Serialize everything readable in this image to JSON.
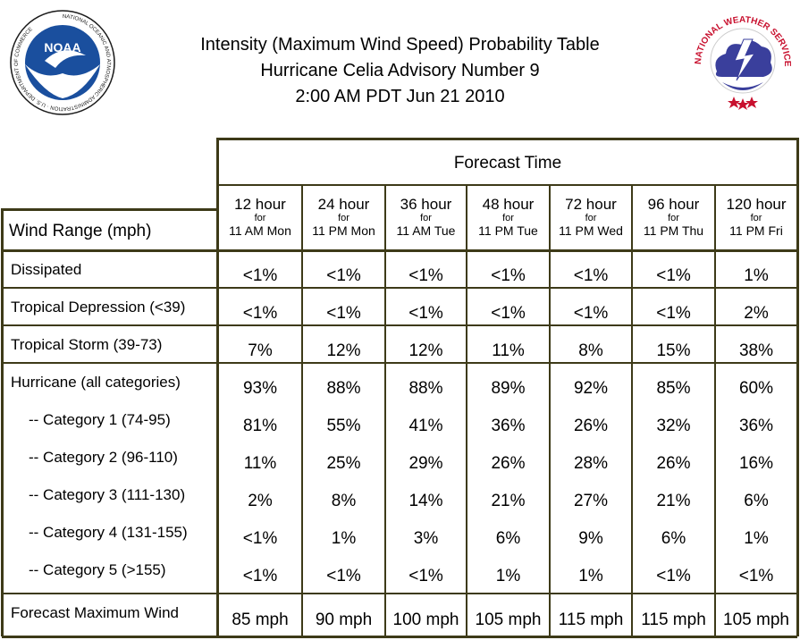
{
  "title": {
    "line1": "Intensity (Maximum Wind Speed) Probability Table",
    "line2": "Hurricane Celia Advisory Number 9",
    "line3": "2:00 AM PDT Jun 21 2010"
  },
  "logos": {
    "noaa": {
      "icon": "noaa-logo-icon",
      "text": "NOAA",
      "ring_text": "NATIONAL OCEANIC AND ATMOSPHERIC ADMINISTRATION · U.S. DEPARTMENT OF COMMERCE"
    },
    "nws": {
      "icon": "nws-logo-icon",
      "ring_text": "NATIONAL WEATHER SERVICE"
    }
  },
  "colors": {
    "grid": "#3d3a18",
    "noaa_blue": "#1a4f9e",
    "nws_red": "#c8102e"
  },
  "table": {
    "forecast_time_label": "Forecast Time",
    "wind_range_label": "Wind Range (mph)",
    "columns": [
      {
        "hours": "12 hour",
        "for": "for",
        "time": "11 AM Mon"
      },
      {
        "hours": "24 hour",
        "for": "for",
        "time": "11 PM Mon"
      },
      {
        "hours": "36 hour",
        "for": "for",
        "time": "11 AM Tue"
      },
      {
        "hours": "48 hour",
        "for": "for",
        "time": "11 PM Tue"
      },
      {
        "hours": "72 hour",
        "for": "for",
        "time": "11 PM Wed"
      },
      {
        "hours": "96 hour",
        "for": "for",
        "time": "11 PM Thu"
      },
      {
        "hours": "120 hour",
        "for": "for",
        "time": "11 PM Fri"
      }
    ],
    "rows": [
      {
        "label": "Dissipated",
        "values": [
          "<1%",
          "<1%",
          "<1%",
          "<1%",
          "<1%",
          "<1%",
          "1%"
        ]
      },
      {
        "label": "Tropical Depression (<39)",
        "values": [
          "<1%",
          "<1%",
          "<1%",
          "<1%",
          "<1%",
          "<1%",
          "2%"
        ]
      },
      {
        "label": "Tropical Storm (39-73)",
        "values": [
          "7%",
          "12%",
          "12%",
          "11%",
          "8%",
          "15%",
          "38%"
        ]
      },
      {
        "label": "Hurricane (all categories)",
        "values": [
          "93%",
          "88%",
          "88%",
          "89%",
          "92%",
          "85%",
          "60%"
        ]
      },
      {
        "label": "-- Category 1 (74-95)",
        "values": [
          "81%",
          "55%",
          "41%",
          "36%",
          "26%",
          "32%",
          "36%"
        ]
      },
      {
        "label": "-- Category 2 (96-110)",
        "values": [
          "11%",
          "25%",
          "29%",
          "26%",
          "28%",
          "26%",
          "16%"
        ]
      },
      {
        "label": "-- Category 3 (111-130)",
        "values": [
          "2%",
          "8%",
          "14%",
          "21%",
          "27%",
          "21%",
          "6%"
        ]
      },
      {
        "label": "-- Category 4 (131-155)",
        "values": [
          "<1%",
          "1%",
          "3%",
          "6%",
          "9%",
          "6%",
          "1%"
        ]
      },
      {
        "label": "-- Category 5 (>155)",
        "values": [
          "<1%",
          "<1%",
          "<1%",
          "1%",
          "1%",
          "<1%",
          "<1%"
        ]
      },
      {
        "label": "Forecast Maximum Wind",
        "values": [
          "85 mph",
          "90 mph",
          "100 mph",
          "105 mph",
          "115 mph",
          "115 mph",
          "105 mph"
        ]
      }
    ]
  },
  "chart_data": {
    "type": "table",
    "title": "Intensity (Maximum Wind Speed) Probability Table",
    "subtitle": "Hurricane Celia Advisory Number 9 — 2:00 AM PDT Jun 21 2010",
    "column_header": "Forecast Time",
    "row_header": "Wind Range (mph)",
    "columns": [
      "12 hour for 11 AM Mon",
      "24 hour for 11 PM Mon",
      "36 hour for 11 AM Tue",
      "48 hour for 11 PM Tue",
      "72 hour for 11 PM Wed",
      "96 hour for 11 PM Thu",
      "120 hour for 11 PM Fri"
    ],
    "rows": [
      [
        "Dissipated",
        "<1%",
        "<1%",
        "<1%",
        "<1%",
        "<1%",
        "<1%",
        "1%"
      ],
      [
        "Tropical Depression (<39)",
        "<1%",
        "<1%",
        "<1%",
        "<1%",
        "<1%",
        "<1%",
        "2%"
      ],
      [
        "Tropical Storm (39-73)",
        "7%",
        "12%",
        "12%",
        "11%",
        "8%",
        "15%",
        "38%"
      ],
      [
        "Hurricane (all categories)",
        "93%",
        "88%",
        "88%",
        "89%",
        "92%",
        "85%",
        "60%"
      ],
      [
        "-- Category 1 (74-95)",
        "81%",
        "55%",
        "41%",
        "36%",
        "26%",
        "32%",
        "36%"
      ],
      [
        "-- Category 2 (96-110)",
        "11%",
        "25%",
        "29%",
        "26%",
        "28%",
        "26%",
        "16%"
      ],
      [
        "-- Category 3 (111-130)",
        "2%",
        "8%",
        "14%",
        "21%",
        "27%",
        "21%",
        "6%"
      ],
      [
        "-- Category 4 (131-155)",
        "<1%",
        "1%",
        "3%",
        "6%",
        "9%",
        "6%",
        "1%"
      ],
      [
        "-- Category 5 (>155)",
        "<1%",
        "<1%",
        "<1%",
        "1%",
        "1%",
        "<1%",
        "<1%"
      ],
      [
        "Forecast Maximum Wind",
        "85 mph",
        "90 mph",
        "100 mph",
        "105 mph",
        "115 mph",
        "115 mph",
        "105 mph"
      ]
    ]
  }
}
